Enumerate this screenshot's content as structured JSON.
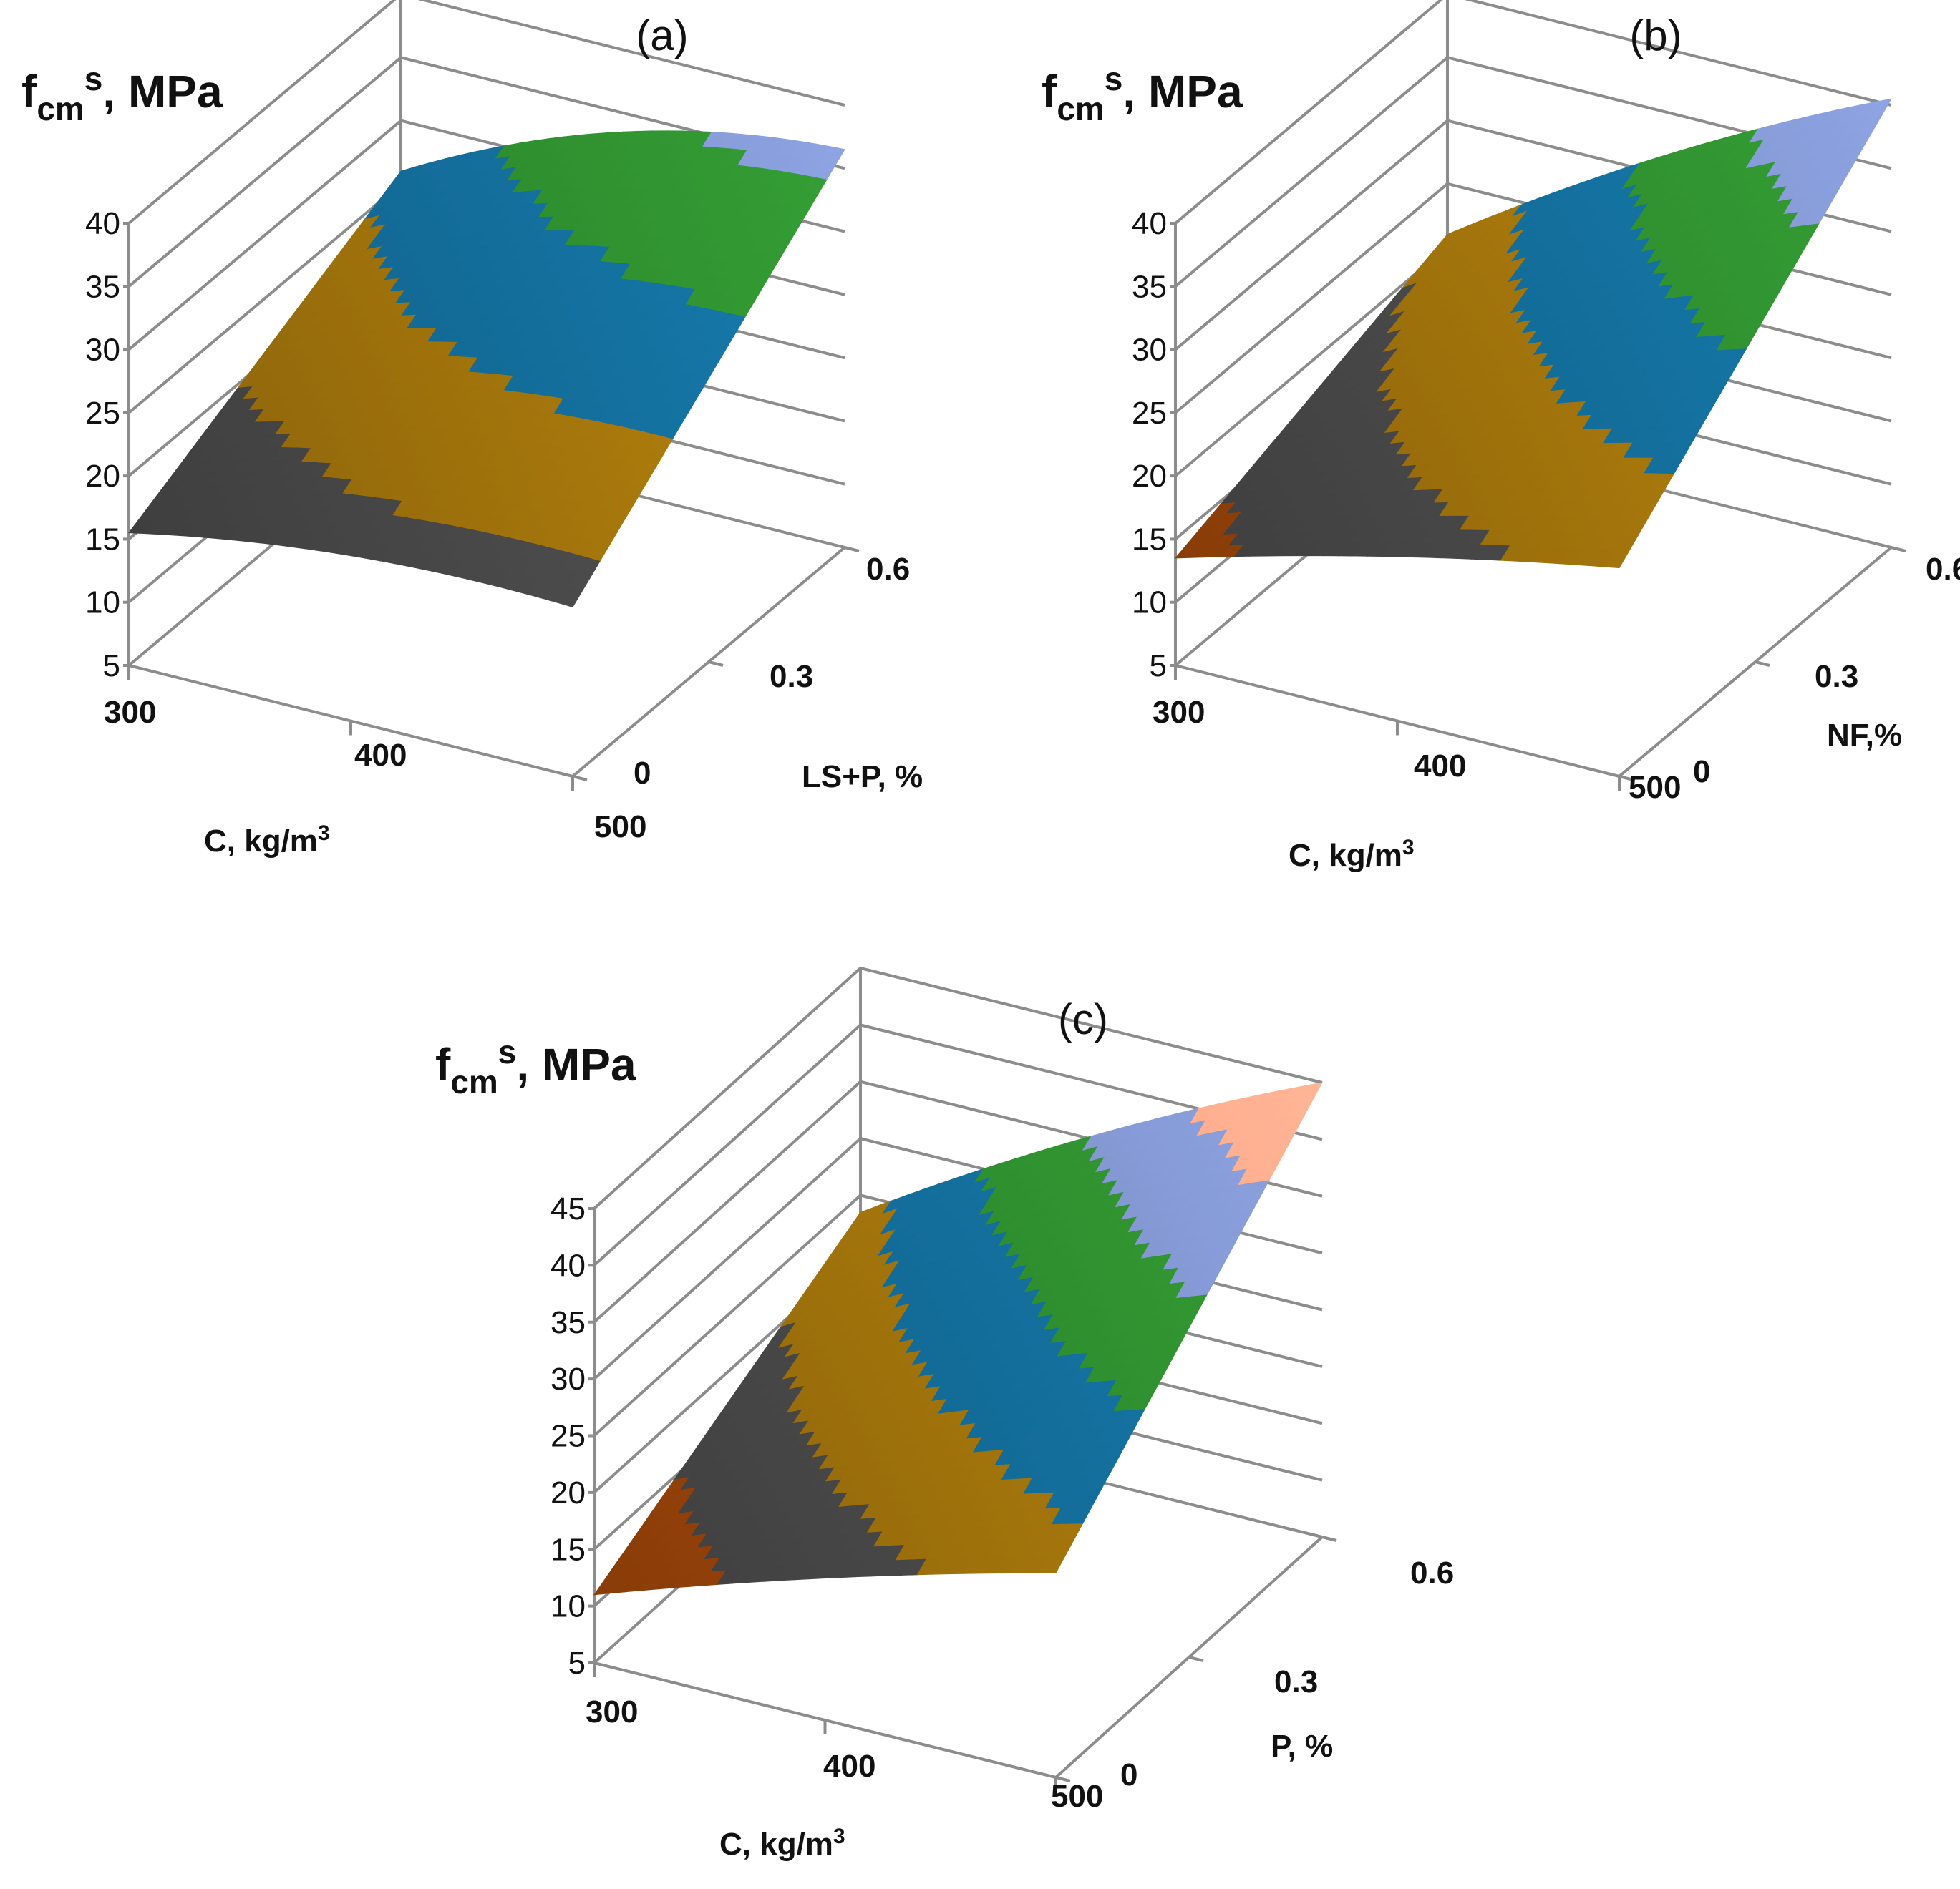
{
  "figure": {
    "z_label_main": "f",
    "z_label_sub": "cm",
    "z_label_sup": "s",
    "z_label_tail": ", MPa"
  },
  "chart_data": [
    {
      "type": "surface",
      "panel": "(a)",
      "zlabel": "fcm s, MPa",
      "xlabel_main": "C, kg/m",
      "xlabel_sup": "3",
      "ylabel": "LS+P, %",
      "x_ticks": [
        "300",
        "400",
        "500"
      ],
      "y_ticks": [
        "0",
        "0.3",
        "0.6"
      ],
      "z_ticks": [
        "5",
        "10",
        "15",
        "20",
        "25",
        "30",
        "35",
        "40"
      ],
      "xlim": [
        300,
        500
      ],
      "ylim": [
        0,
        0.6
      ],
      "zlim": [
        5,
        40
      ],
      "color_bands": [
        {
          "range": [
            10,
            15
          ],
          "color": "#a84a0a"
        },
        {
          "range": [
            15,
            20
          ],
          "color": "#4d4d4d"
        },
        {
          "range": [
            20,
            25
          ],
          "color": "#a8780c"
        },
        {
          "range": [
            25,
            30
          ],
          "color": "#14709e"
        },
        {
          "range": [
            30,
            35
          ],
          "color": "#2f8f2f"
        },
        {
          "range": [
            35,
            40
          ],
          "color": "#7f93cc"
        }
      ],
      "corner_values": {
        "c300_p0": 15.5,
        "c500_p0": 18.4,
        "c300_p06": 26.0,
        "c500_p06": 36.5
      },
      "peak": {
        "x": 450,
        "y": 0.6,
        "z": 38
      }
    },
    {
      "type": "surface",
      "panel": "(b)",
      "zlabel": "fcm s, MPa",
      "xlabel_main": "C, kg/m",
      "xlabel_sup": "3",
      "ylabel": "NF,%",
      "x_ticks": [
        "300",
        "400",
        "500"
      ],
      "y_ticks": [
        "0",
        "0.3",
        "0.6"
      ],
      "z_ticks": [
        "5",
        "10",
        "15",
        "20",
        "25",
        "30",
        "35",
        "40"
      ],
      "xlim": [
        300,
        500
      ],
      "ylim": [
        0,
        0.6
      ],
      "zlim": [
        5,
        40
      ],
      "color_bands": [
        {
          "range": [
            10,
            15
          ],
          "color": "#a84a0a"
        },
        {
          "range": [
            15,
            20
          ],
          "color": "#4d4d4d"
        },
        {
          "range": [
            20,
            25
          ],
          "color": "#a8780c"
        },
        {
          "range": [
            25,
            30
          ],
          "color": "#14709e"
        },
        {
          "range": [
            30,
            35
          ],
          "color": "#2f8f2f"
        },
        {
          "range": [
            35,
            40
          ],
          "color": "#7f93cc"
        }
      ],
      "corner_values": {
        "c300_p0": 13.5,
        "c500_p0": 21.5,
        "c300_p06": 21.0,
        "c500_p06": 40.5
      },
      "peak": {
        "x": 500,
        "y": 0.6,
        "z": 40.5
      }
    },
    {
      "type": "surface",
      "panel": "(c)",
      "zlabel": "fcm s, MPa",
      "xlabel_main": "C, kg/m",
      "xlabel_sup": "3",
      "ylabel": "P, %",
      "x_ticks": [
        "300",
        "400",
        "500"
      ],
      "y_ticks": [
        "0",
        "0.3",
        "0.6"
      ],
      "z_ticks": [
        "5",
        "10",
        "15",
        "20",
        "25",
        "30",
        "35",
        "40",
        "45"
      ],
      "xlim": [
        300,
        500
      ],
      "ylim": [
        0,
        0.6
      ],
      "zlim": [
        5,
        45
      ],
      "color_bands": [
        {
          "range": [
            10,
            15
          ],
          "color": "#a84a0a"
        },
        {
          "range": [
            15,
            20
          ],
          "color": "#4d4d4d"
        },
        {
          "range": [
            20,
            25
          ],
          "color": "#a8780c"
        },
        {
          "range": [
            25,
            30
          ],
          "color": "#14709e"
        },
        {
          "range": [
            30,
            35
          ],
          "color": "#2f8f2f"
        },
        {
          "range": [
            35,
            40
          ],
          "color": "#7f93cc"
        },
        {
          "range": [
            40,
            45
          ],
          "color": "#f3a386"
        }
      ],
      "corner_values": {
        "c300_p0": 11.0,
        "c500_p0": 23.0,
        "c300_p06": 23.5,
        "c500_p06": 45.0
      },
      "peak": {
        "x": 500,
        "y": 0.6,
        "z": 45
      }
    }
  ]
}
